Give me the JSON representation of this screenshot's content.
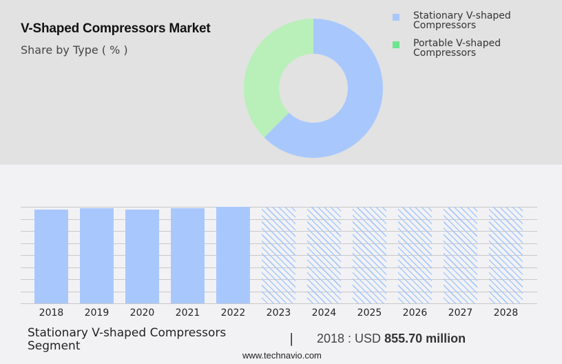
{
  "header": {
    "title": "V-Shaped Compressors Market",
    "subtitle": "Share by Type ( % )"
  },
  "legend": {
    "items": [
      {
        "label": "Stationary V-shaped Compressors",
        "color": "#a8c8fd"
      },
      {
        "label": "Portable V-shaped Compressors",
        "color": "#6ee48f"
      }
    ]
  },
  "footer": {
    "segment": "Stationary V-shaped Compressors Segment",
    "separator": "|",
    "value_prefix": "2018 : USD ",
    "value_bold": "855.70 million",
    "url": "www.technavio.com"
  },
  "colors": {
    "donut_blue": "#a8c8fd",
    "donut_green": "#b9efb9",
    "bar_blue": "#a8c8fd",
    "panel_bg": "#e2e2e2",
    "page_bg": "#f2f2f4"
  },
  "chart_data": [
    {
      "type": "pie",
      "title": "V-Shaped Compressors Market",
      "subtitle": "Share by Type ( % )",
      "style": "donut",
      "categories": [
        "Stationary V-shaped Compressors",
        "Portable V-shaped Compressors"
      ],
      "values": [
        62.5,
        37.5
      ],
      "colors": [
        "#a8c8fd",
        "#b9efb9"
      ],
      "legend_position": "right"
    },
    {
      "type": "bar",
      "title": "Stationary V-shaped Compressors Segment",
      "categories": [
        "2018",
        "2019",
        "2020",
        "2021",
        "2022",
        "2023",
        "2024",
        "2025",
        "2026",
        "2027",
        "2028"
      ],
      "values": [
        855.7,
        868,
        856,
        868,
        881,
        881,
        881,
        881,
        881,
        881,
        881
      ],
      "forecast_from": "2023",
      "forecast_style": "hatched",
      "xlabel": "",
      "ylabel": "",
      "grid": true,
      "annotation": "2018 : USD 855.70 million"
    }
  ]
}
